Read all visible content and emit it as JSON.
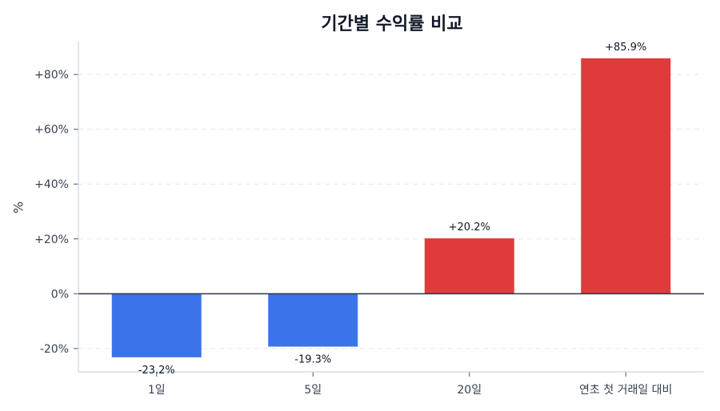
{
  "chart_data": {
    "type": "bar",
    "title": "기간별 수익률 비교",
    "xlabel": "",
    "ylabel": "%",
    "categories": [
      "1일",
      "5일",
      "20일",
      "연초 첫 거래일 대비"
    ],
    "values": [
      -23.2,
      -19.3,
      20.2,
      85.9
    ],
    "value_labels": [
      "-23.2%",
      "-19.3%",
      "+20.2%",
      "+85.9%"
    ],
    "colors": [
      "#3b73ea",
      "#3b73ea",
      "#df3b3b",
      "#df3b3b"
    ],
    "yticks": [
      -20,
      0,
      20,
      40,
      60,
      80
    ],
    "ytick_labels": [
      "-20%",
      "0%",
      "+20%",
      "+40%",
      "+60%",
      "+80%"
    ],
    "ylim": [
      -28.5,
      92
    ],
    "grid": "horizontal dashed",
    "zero_line": true,
    "legend": null
  },
  "colors": {
    "positive": "#df3b3b",
    "negative": "#3b73ea",
    "grid": "#e2e8f0",
    "axis": "#cbd5e1",
    "zero_line": "#2d3748"
  }
}
